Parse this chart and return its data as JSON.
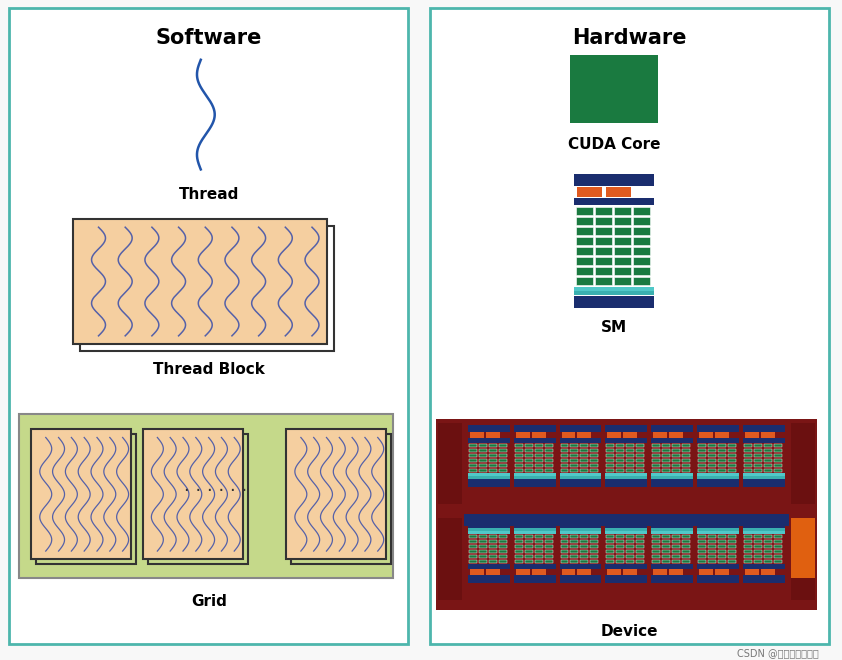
{
  "bg_color": "#f8f8f8",
  "border_color": "#4db6ac",
  "left_title": "Software",
  "right_title": "Hardware",
  "thread_label": "Thread",
  "block_label": "Thread Block",
  "grid_label": "Grid",
  "cuda_label": "CUDA Core",
  "sm_label": "SM",
  "device_label": "Device",
  "thread_color": "#2255aa",
  "block_bg": "#f5cfa0",
  "block_border": "#333333",
  "grid_bg": "#c5d98a",
  "grid_border": "#888888",
  "cuda_green": "#1a7a40",
  "sm_navy": "#1a2d6e",
  "sm_orange": "#e05a20",
  "sm_teal": "#3ab0b0",
  "sm_teal2": "#50c8c8",
  "device_dark_red": "#7a1515",
  "device_orange_accent": "#e06010",
  "watermark": "CSDN @拾公主的大魔王"
}
